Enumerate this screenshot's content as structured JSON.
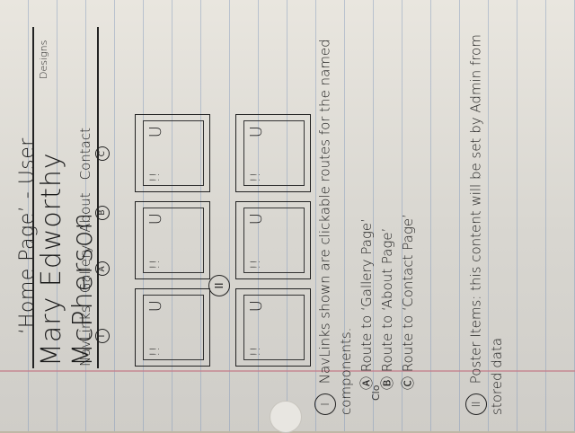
{
  "page": {
    "title": "‘Home Page’ - User",
    "brand": "Mary Edworthy McPherson",
    "brand_sub": "Designs",
    "nav_label": "NavLinks",
    "nav": [
      {
        "label": "Gallery",
        "marker": "A"
      },
      {
        "label": "About",
        "marker": "B"
      },
      {
        "label": "Contact",
        "marker": "C"
      }
    ],
    "nav_marker": "I",
    "poster_marker": "II",
    "posters": [
      {
        "marks": "!!",
        "smile": "U"
      },
      {
        "marks": "!!",
        "smile": "U"
      },
      {
        "marks": "!!",
        "smile": "U"
      },
      {
        "marks": "!!",
        "smile": "U"
      },
      {
        "marks": "!!",
        "smile": "U"
      },
      {
        "marks": "!!",
        "smile": "U"
      }
    ]
  },
  "notes": {
    "nav_heading": "NavLinks shown are clickable routes for the named components.",
    "routes": [
      "Ⓐ Route to ‘Gallery Page’",
      "Ⓑ Route to ‘About Page’",
      "Ⓒ Route to ‘Contact Page’"
    ],
    "posters_heading": "Poster Items: this content will be set by Admin from stored data"
  },
  "tag": "Clo"
}
